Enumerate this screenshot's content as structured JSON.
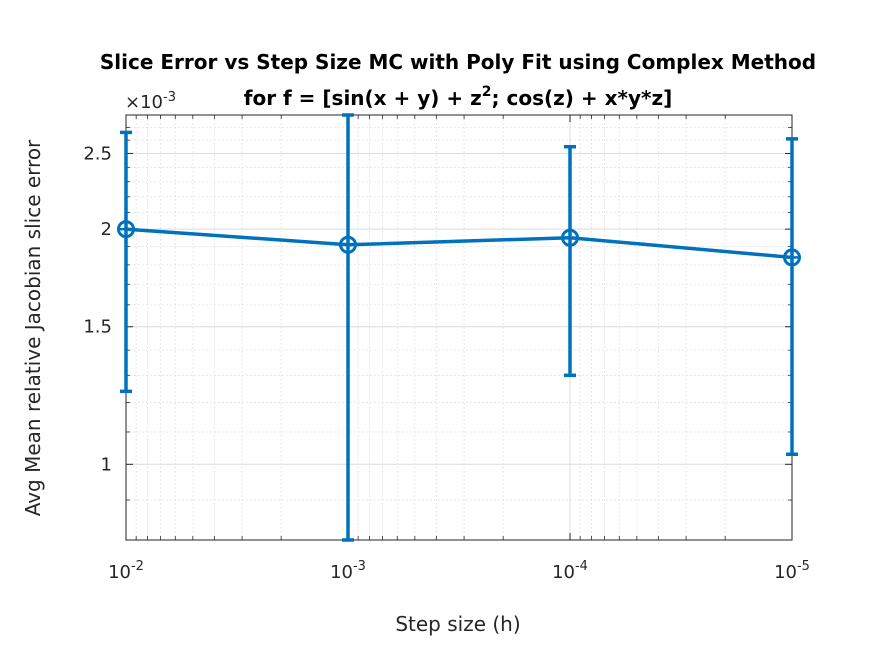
{
  "chart_data": {
    "type": "line",
    "title_line1": "Slice Error vs Step Size MC with Poly Fit using Complex Method",
    "title_line2_prefix": "for f = [sin(x + y) + z",
    "title_line2_sup": "2",
    "title_line2_suffix": "; cos(z) + x*y*z]",
    "xlabel": "Step size (h)",
    "ylabel": "Avg Mean relative Jacobian slice error",
    "y_multiplier_base": "×10",
    "y_multiplier_exp": "-3",
    "x_scale": "log",
    "x_reversed": true,
    "y_scale": "log",
    "grid": true,
    "minor_grid": true,
    "x_ticks": [
      {
        "base": "10",
        "exp": "-2",
        "value": 0.01
      },
      {
        "base": "10",
        "exp": "-3",
        "value": 0.001
      },
      {
        "base": "10",
        "exp": "-4",
        "value": 0.0001
      },
      {
        "base": "10",
        "exp": "-5",
        "value": 1e-05
      }
    ],
    "y_ticks": [
      {
        "label": "1",
        "value": 1.0
      },
      {
        "label": "1.5",
        "value": 1.5
      },
      {
        "label": "2",
        "value": 2.0
      },
      {
        "label": "2.5",
        "value": 2.5
      }
    ],
    "xlim": [
      0.01,
      1e-05
    ],
    "ylim": [
      0.8,
      2.8
    ],
    "series": [
      {
        "color": "#0072BD",
        "marker": "circle-plus",
        "x": [
          0.01,
          0.001,
          0.0001,
          1e-05
        ],
        "y": [
          2.0,
          1.91,
          1.95,
          1.84
        ],
        "err_low": [
          1.24,
          0.8,
          1.3,
          1.03
        ],
        "err_high": [
          2.66,
          2.8,
          2.55,
          2.61
        ]
      }
    ]
  }
}
